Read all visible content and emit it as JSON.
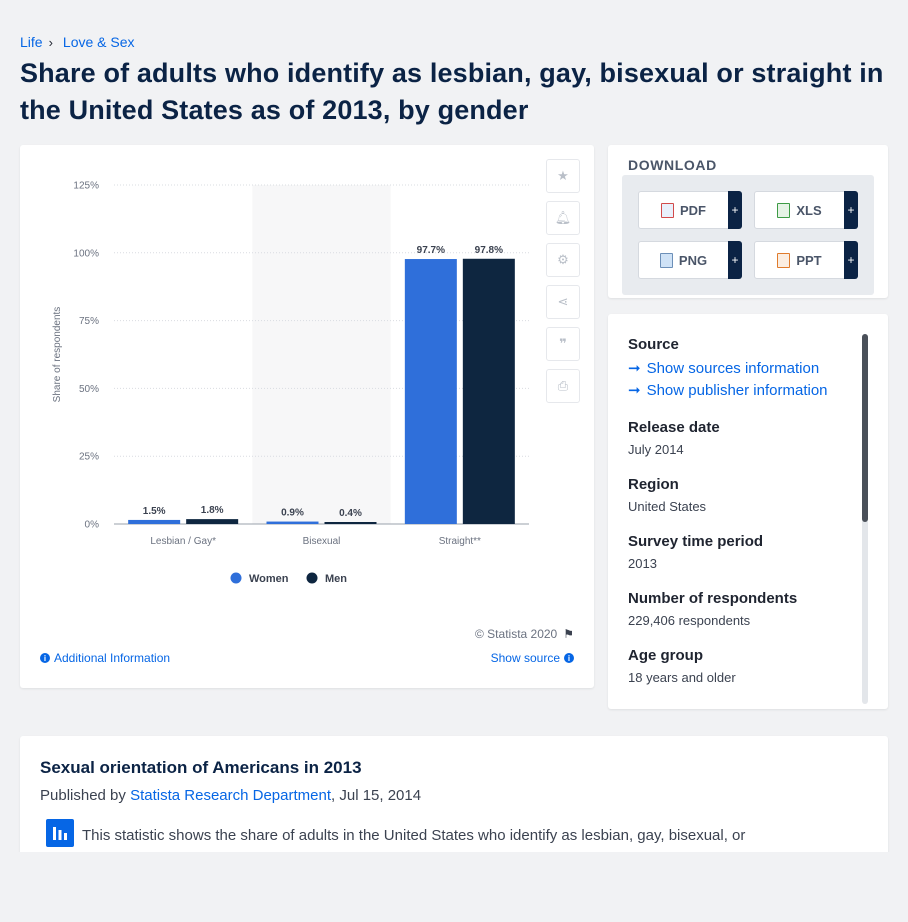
{
  "breadcrumb": {
    "items": [
      "Life",
      "Love & Sex"
    ]
  },
  "page_title": "Share of adults who identify as lesbian, gay, bisexual or straight in the United States as of 2013, by gender",
  "chart": {
    "copyright": "© Statista 2020",
    "additional_info": "Additional Information",
    "show_source": "Show source"
  },
  "chart_data": {
    "type": "bar",
    "categories": [
      "Lesbian / Gay*",
      "Bisexual",
      "Straight**"
    ],
    "series": [
      {
        "name": "Women",
        "values": [
          1.5,
          0.9,
          97.7
        ],
        "color": "#2f6fda"
      },
      {
        "name": "Men",
        "values": [
          1.8,
          0.4,
          97.8
        ],
        "color": "#0e2640"
      }
    ],
    "value_labels": [
      [
        "1.5%",
        "0.9%",
        "97.7%"
      ],
      [
        "1.8%",
        "0.4%",
        "97.8%"
      ]
    ],
    "ylabel": "Share of respondents",
    "yticks": [
      0,
      25,
      50,
      75,
      100,
      125
    ],
    "ytick_labels": [
      "0%",
      "25%",
      "50%",
      "75%",
      "100%",
      "125%"
    ],
    "ylim": [
      0,
      125
    ],
    "legend": "bottom-center",
    "grid": true
  },
  "download": {
    "title": "DOWNLOAD",
    "buttons": [
      "PDF",
      "XLS",
      "PNG",
      "PPT"
    ],
    "plus": "+"
  },
  "info": {
    "source_label": "Source",
    "show_sources": "Show sources information",
    "show_publisher": "Show publisher information",
    "release_label": "Release date",
    "release_value": "July 2014",
    "region_label": "Region",
    "region_value": "United States",
    "survey_label": "Survey time period",
    "survey_value": "2013",
    "respondents_label": "Number of respondents",
    "respondents_value": "229,406 respondents",
    "age_label": "Age group",
    "age_value": "18 years and older"
  },
  "article": {
    "title": "Sexual orientation of Americans in 2013",
    "published_by": "Published by",
    "publisher": "Statista Research Department",
    "date": ", Jul 15, 2014",
    "body": "This statistic shows the share of adults in the United States who identify as lesbian, gay, bisexual, or"
  },
  "colors": {
    "accent": "#0666e5",
    "navy": "#0b2345"
  }
}
